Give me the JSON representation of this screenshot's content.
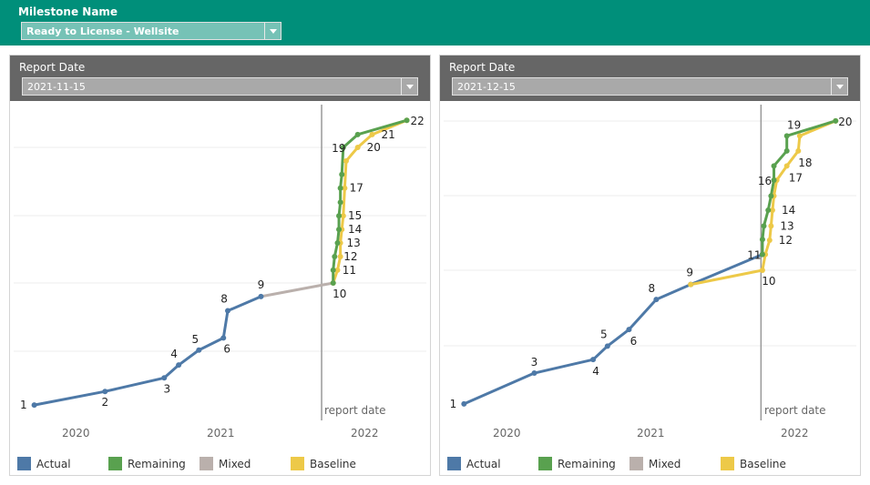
{
  "filter": {
    "label": "Milestone Name",
    "value": "Ready to License - Wellsite"
  },
  "legend": [
    {
      "label": "Actual",
      "color": "#4e79a7"
    },
    {
      "label": "Remaining",
      "color": "#59a14f"
    },
    {
      "label": "Mixed",
      "color": "#bab0ac"
    },
    {
      "label": "Baseline",
      "color": "#edc948"
    }
  ],
  "panels": [
    {
      "label": "Report Date",
      "value": "2021-11-15",
      "years": [
        "2020",
        "2021",
        "2022"
      ],
      "report_label": "report date"
    },
    {
      "label": "Report Date",
      "value": "2021-12-15",
      "years": [
        "2020",
        "2021",
        "2022"
      ],
      "report_label": "report date"
    }
  ],
  "chart_data": [
    {
      "type": "line",
      "xlabel": "",
      "ylabel": "",
      "x_ticks": [
        "2020",
        "2021",
        "2022"
      ],
      "report_date": 2021.71,
      "series": [
        {
          "name": "Actual",
          "color": "#4e79a7",
          "points": [
            [
              2019.72,
              0.2,
              "1"
            ],
            [
              2020.21,
              0.4,
              "2"
            ],
            [
              2020.62,
              0.6,
              "3"
            ],
            [
              2020.72,
              0.79,
              "4"
            ],
            [
              2020.86,
              1.01,
              "5"
            ],
            [
              2021.03,
              1.19,
              "6"
            ],
            [
              2021.06,
              1.59,
              "8"
            ],
            [
              2021.29,
              1.8,
              "9"
            ]
          ]
        },
        {
          "name": "Mixed",
          "color": "#bab0ac",
          "points": [
            [
              2021.29,
              1.8,
              ""
            ],
            [
              2021.79,
              2.0,
              ""
            ]
          ]
        },
        {
          "name": "Baseline",
          "color": "#edc948",
          "points": [
            [
              2021.79,
              2.0,
              ""
            ],
            [
              2021.82,
              2.19,
              ""
            ],
            [
              2021.84,
              2.39,
              ""
            ],
            [
              2021.84,
              2.59,
              ""
            ],
            [
              2021.85,
              2.79,
              ""
            ],
            [
              2021.86,
              2.99,
              ""
            ],
            [
              2021.87,
              3.4,
              ""
            ],
            [
              2021.88,
              3.8,
              ""
            ],
            [
              2021.96,
              4.0,
              "20"
            ],
            [
              2022.06,
              4.19,
              "21"
            ],
            [
              2022.3,
              4.4,
              ""
            ]
          ]
        },
        {
          "name": "Remaining",
          "color": "#59a14f",
          "points": [
            [
              2021.79,
              2.0,
              "10"
            ],
            [
              2021.79,
              2.19,
              "11"
            ],
            [
              2021.8,
              2.39,
              "12"
            ],
            [
              2021.82,
              2.59,
              "13"
            ],
            [
              2021.83,
              2.79,
              "14"
            ],
            [
              2021.83,
              2.99,
              "15"
            ],
            [
              2021.84,
              3.19,
              ""
            ],
            [
              2021.84,
              3.4,
              "17"
            ],
            [
              2021.85,
              3.6,
              ""
            ],
            [
              2021.86,
              4.0,
              "19"
            ],
            [
              2021.96,
              4.19,
              ""
            ],
            [
              2022.3,
              4.4,
              "22"
            ]
          ]
        }
      ]
    },
    {
      "type": "line",
      "xlabel": "",
      "ylabel": "",
      "x_ticks": [
        "2020",
        "2021",
        "2022"
      ],
      "report_date": 2021.78,
      "series": [
        {
          "name": "Actual",
          "color": "#4e79a7",
          "points": [
            [
              2019.71,
              0.22,
              "1"
            ],
            [
              2020.2,
              0.63,
              "3"
            ],
            [
              2020.61,
              0.81,
              "4"
            ],
            [
              2020.71,
              0.99,
              "5"
            ],
            [
              2020.86,
              1.21,
              "6"
            ],
            [
              2021.05,
              1.61,
              "8"
            ],
            [
              2021.29,
              1.81,
              "9"
            ],
            [
              2021.79,
              2.21,
              "11"
            ]
          ]
        },
        {
          "name": "Baseline",
          "color": "#edc948",
          "points": [
            [
              2021.29,
              1.81,
              ""
            ],
            [
              2021.79,
              2.0,
              "10"
            ],
            [
              2021.81,
              2.21,
              ""
            ],
            [
              2021.84,
              2.4,
              "12"
            ],
            [
              2021.85,
              2.59,
              "13"
            ],
            [
              2021.86,
              2.8,
              "14"
            ],
            [
              2021.87,
              2.99,
              ""
            ],
            [
              2021.89,
              3.2,
              ""
            ],
            [
              2021.96,
              3.39,
              "17"
            ],
            [
              2022.04,
              3.59,
              "18"
            ],
            [
              2022.05,
              3.79,
              ""
            ],
            [
              2022.3,
              3.99,
              ""
            ]
          ]
        },
        {
          "name": "Remaining",
          "color": "#59a14f",
          "points": [
            [
              2021.79,
              2.21,
              ""
            ],
            [
              2021.79,
              2.41,
              ""
            ],
            [
              2021.8,
              2.59,
              ""
            ],
            [
              2021.83,
              2.8,
              ""
            ],
            [
              2021.85,
              2.99,
              ""
            ],
            [
              2021.87,
              3.2,
              "16"
            ],
            [
              2021.87,
              3.39,
              ""
            ],
            [
              2021.96,
              3.59,
              ""
            ],
            [
              2021.96,
              3.79,
              "19"
            ],
            [
              2022.3,
              3.99,
              "20"
            ]
          ]
        }
      ]
    }
  ]
}
